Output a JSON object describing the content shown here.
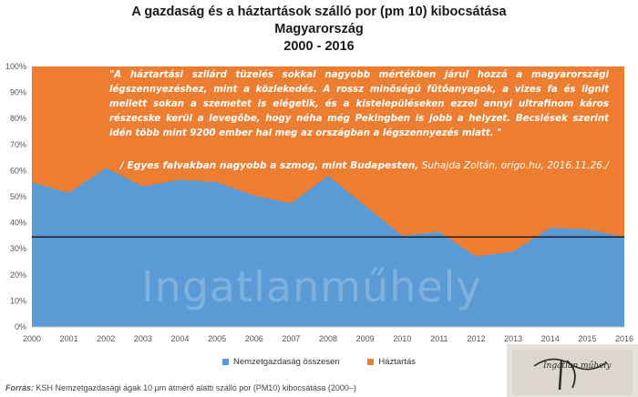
{
  "title": {
    "line1": "A gazdaság és a háztartások szálló por (pm 10) kibocsátása",
    "line2": "Magyarország",
    "line3": "2000 - 2016"
  },
  "quote": {
    "text": "\"A háztartási szilárd tüzelés sokkal nagyobb mértékben járul  hozzá  a magyarországi légszennyezéshez, mint a közlekedés.  A rossz minőségű fűtőanyagok, a vizes fa és lignit mellett sokan a szemetet is elégetik, és a kistelepüléseken ezzel annyi ultrafinom káros részecske kerül a levegőbe, hogy néha még Pekingben is jobb a helyzet. Becslések szerint idén több mint 9200 ember hal meg az országban a légszennyezés miatt. \"",
    "source_bold": "/ Egyes falvakban nagyobb a szmog, mint Budapesten,",
    "source_rest": " Suhajda Zoltán, origo.hu, 2016.11.26./"
  },
  "watermark": "Ingatlanműhely",
  "logo_text": "Ingatlan műhely",
  "source": {
    "label": "Forrás:",
    "text": " KSH Nemzetgazdasági ágak 10 μm átmérő alatti szálló por (PM10) kibocsátása (2000–)"
  },
  "colors": {
    "economy": "#5b9bd5",
    "household": "#ed7d31",
    "reference_line": "#111111"
  },
  "chart_data": {
    "type": "area",
    "stacked": true,
    "percent": true,
    "x": [
      "2000",
      "2001",
      "2002",
      "2003",
      "2004",
      "2005",
      "2006",
      "2007",
      "2008",
      "2009",
      "2010",
      "2011",
      "2012",
      "2013",
      "2014",
      "2015",
      "2016"
    ],
    "series": [
      {
        "name": "Nemzetgazdaság összesen",
        "values": [
          55.5,
          51.5,
          61,
          54,
          56.5,
          55.5,
          50.5,
          47.5,
          58,
          46.5,
          35,
          36.5,
          27,
          29,
          38,
          37.5,
          34.5
        ]
      },
      {
        "name": "Háztartás",
        "values": [
          44.5,
          48.5,
          39,
          46,
          43.5,
          44.5,
          49.5,
          52.5,
          42,
          53.5,
          65,
          63.5,
          73,
          71,
          62,
          62.5,
          65.5
        ]
      }
    ],
    "reference_line": 34.5,
    "y_ticks": [
      "0%",
      "10%",
      "20%",
      "30%",
      "40%",
      "50%",
      "60%",
      "70%",
      "80%",
      "90%",
      "100%"
    ],
    "ylim": [
      0,
      100
    ],
    "legend_position": "bottom",
    "grid": false
  }
}
